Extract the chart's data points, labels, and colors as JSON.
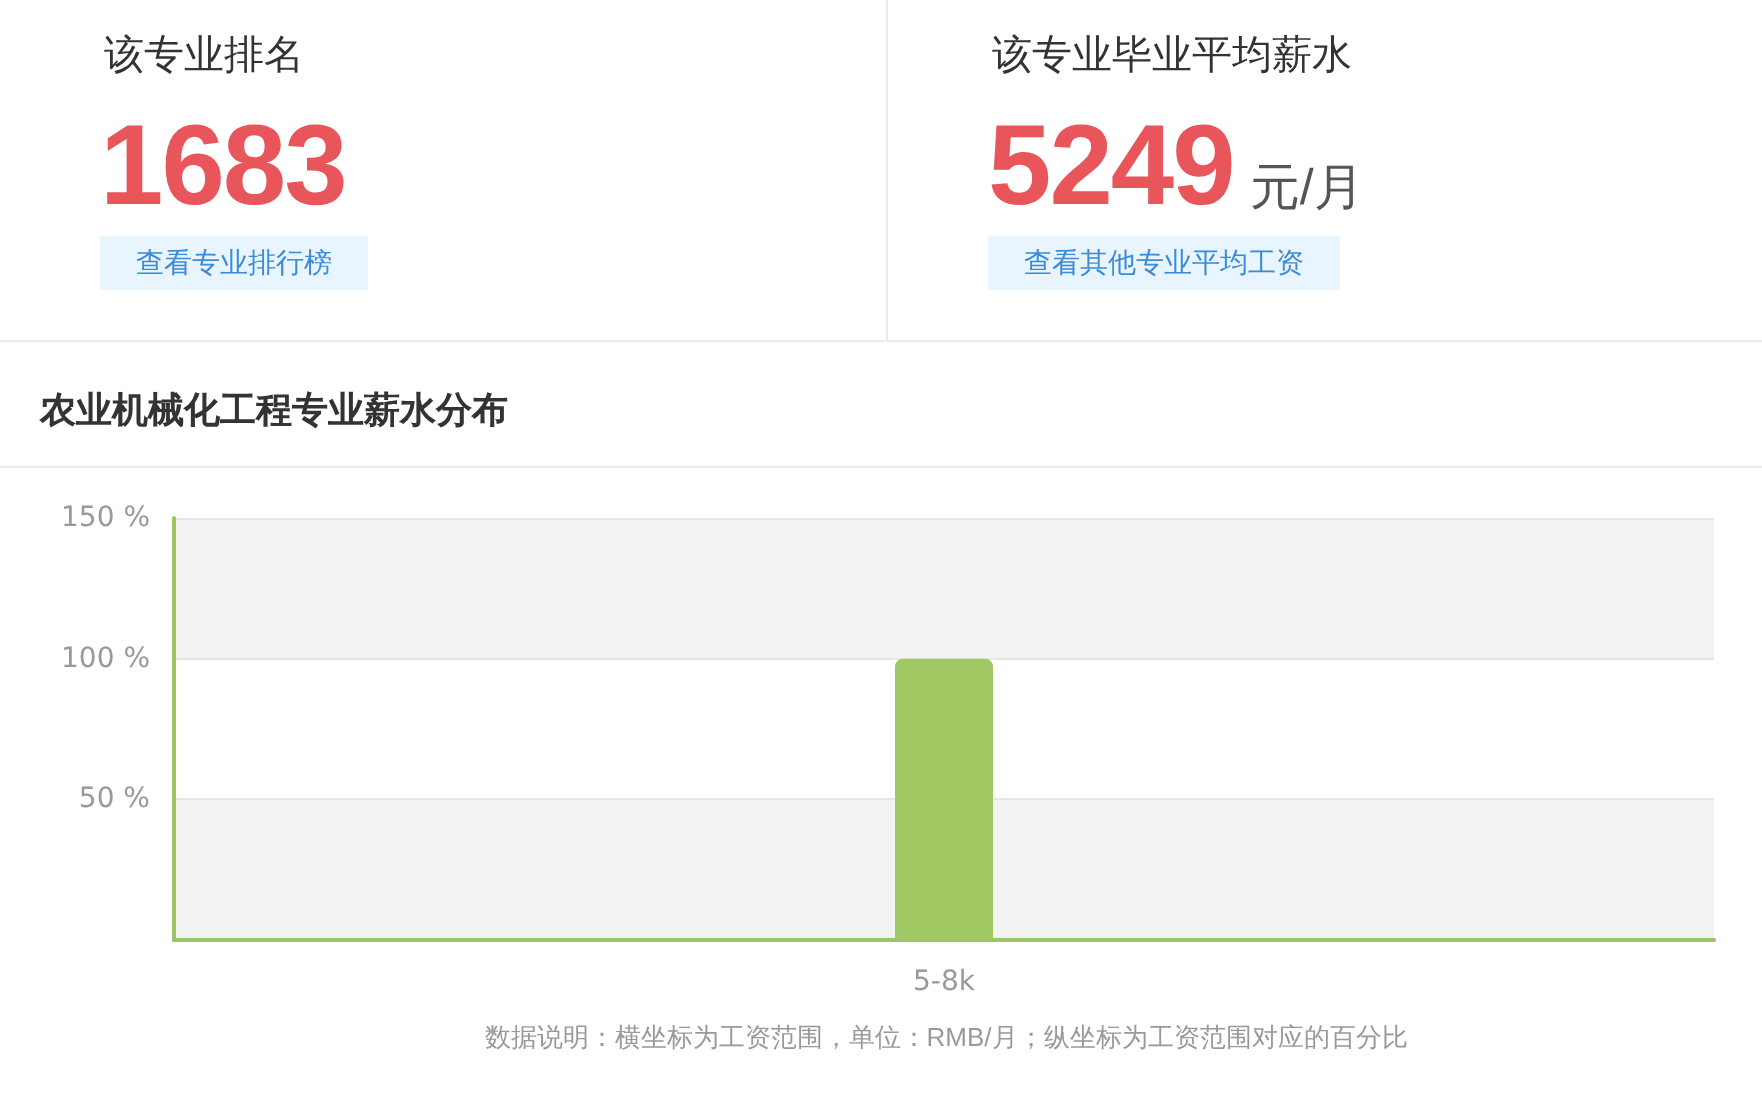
{
  "chart_data": [
    {
      "type": "other",
      "title": "该专业排名",
      "annotations": [
        "1683",
        "查看专业排行榜"
      ]
    },
    {
      "type": "other",
      "title": "该专业毕业平均薪水",
      "annotations": [
        "5249",
        "元/月",
        "查看其他专业平均工资"
      ]
    },
    {
      "type": "bar",
      "title": "农业机械化工程专业薪水分布",
      "categories": [
        "5-8k"
      ],
      "values": [
        100
      ],
      "color": "#a0c862",
      "ylim": [
        0,
        150
      ],
      "yticks": [
        {
          "value": 50,
          "label": "50 %"
        },
        {
          "value": 100,
          "label": "100 %"
        },
        {
          "value": 150,
          "label": "150 %"
        }
      ],
      "grid": "y",
      "annotations": [
        "数据说明：横坐标为工资范围，单位：RMB/月；纵坐标为工资范围对应的百分比"
      ]
    }
  ]
}
